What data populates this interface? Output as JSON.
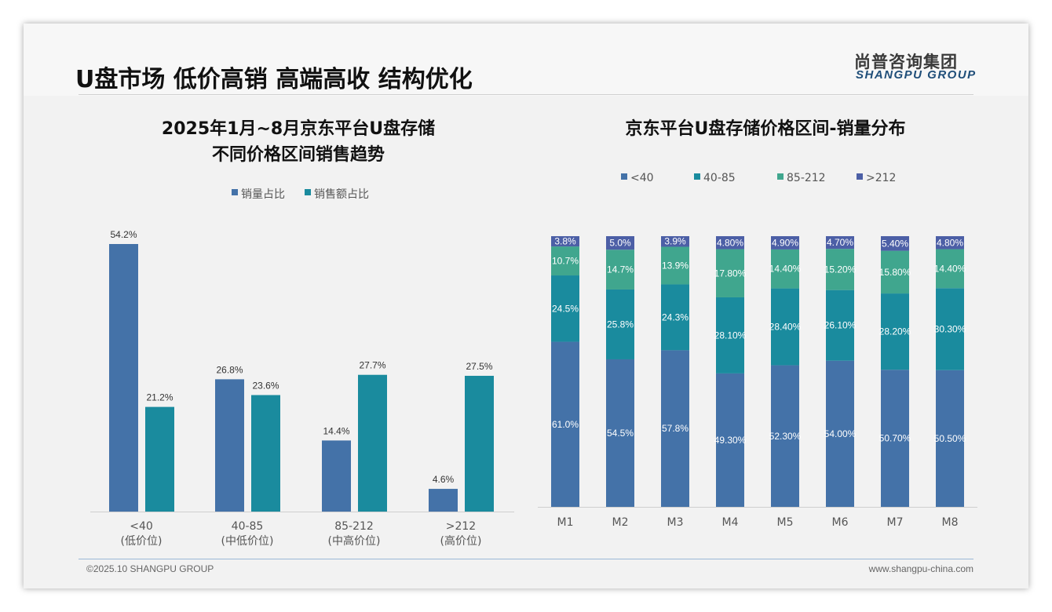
{
  "header": {
    "title": "U盘市场 低价高销 高端高收 结构优化",
    "logo_cn": "尚普咨询集团",
    "logo_en": "SHANGPU GROUP"
  },
  "footer": {
    "copyright": "©2025.10 SHANGPU GROUP",
    "website": "www.shangpu-china.com"
  },
  "colors": {
    "blue": "#4472a8",
    "teal": "#1a8b9e",
    "green": "#40a68e",
    "indigo": "#4c5fa6"
  },
  "chart_data": [
    {
      "type": "bar",
      "title": [
        "2025年1月~8月京东平台U盘存储",
        "不同价格区间销售趋势"
      ],
      "categories": [
        "<40",
        "40-85",
        "85-212",
        ">212"
      ],
      "sublabels": [
        "(低价位)",
        "(中低价位)",
        "(中高价位)",
        "(高价位)"
      ],
      "series": [
        {
          "name": "销量占比",
          "values": [
            54.2,
            26.8,
            14.4,
            4.6
          ],
          "labels": [
            "54.2%",
            "26.8%",
            "14.4%",
            "4.6%"
          ]
        },
        {
          "name": "销售额占比",
          "values": [
            21.2,
            23.6,
            27.7,
            27.5
          ],
          "labels": [
            "21.2%",
            "23.6%",
            "27.7%",
            "27.5%"
          ]
        }
      ],
      "legend": "top-center",
      "ylim": [
        0,
        60
      ]
    },
    {
      "type": "bar",
      "stacked": true,
      "title": "京东平台U盘存储价格区间-销量分布",
      "categories": [
        "M1",
        "M2",
        "M3",
        "M4",
        "M5",
        "M6",
        "M7",
        "M8"
      ],
      "series": [
        {
          "name": "<40",
          "values": [
            61.0,
            54.5,
            57.8,
            49.3,
            52.3,
            54.0,
            50.7,
            50.5
          ],
          "labels": [
            "61.0%",
            "54.5%",
            "57.8%",
            "49.30%",
            "52.30%",
            "54.00%",
            "50.70%",
            "50.50%"
          ]
        },
        {
          "name": "40-85",
          "values": [
            24.5,
            25.8,
            24.3,
            28.1,
            28.4,
            26.1,
            28.2,
            30.3
          ],
          "labels": [
            "24.5%",
            "25.8%",
            "24.3%",
            "28.10%",
            "28.40%",
            "26.10%",
            "28.20%",
            "30.30%"
          ]
        },
        {
          "name": "85-212",
          "values": [
            10.7,
            14.7,
            13.9,
            17.8,
            14.4,
            15.2,
            15.8,
            14.4
          ],
          "labels": [
            "10.7%",
            "14.7%",
            "13.9%",
            "17.80%",
            "14.40%",
            "15.20%",
            "15.80%",
            "14.40%"
          ]
        },
        {
          "name": ">212",
          "values": [
            3.8,
            5.0,
            3.9,
            4.8,
            4.9,
            4.7,
            5.4,
            4.8
          ],
          "labels": [
            "3.8%",
            "5.0%",
            "3.9%",
            "4.80%",
            "4.90%",
            "4.70%",
            "5.40%",
            "4.80%"
          ]
        }
      ],
      "legend": "top-center",
      "ylim": [
        0,
        100
      ]
    }
  ]
}
